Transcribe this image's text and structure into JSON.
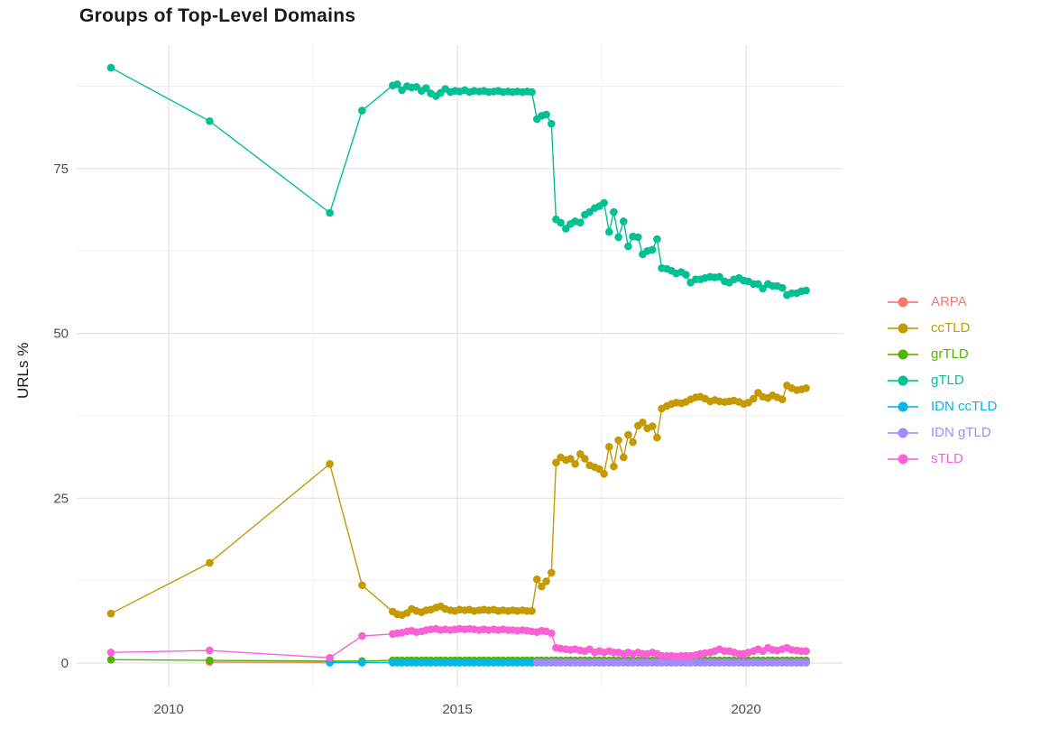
{
  "chart_data": {
    "type": "line",
    "title": "Groups of Top-Level Domains",
    "ylabel": "URLs %",
    "xlabel": "",
    "legend_position": "right",
    "grid": true,
    "x_axis": {
      "ticks": [
        2010,
        2015,
        2020
      ],
      "minor": [
        2012.5,
        2017.5
      ],
      "range": [
        2008.4,
        2021.7
      ]
    },
    "y_axis": {
      "ticks": [
        0,
        25,
        50,
        75
      ],
      "minor": [
        12.5,
        37.5,
        62.5,
        87.5
      ],
      "range": [
        -3.5,
        93.5
      ]
    },
    "x": [
      2009.0,
      2010.71,
      2012.79,
      2013.35,
      2013.88,
      2013.96,
      2014.04,
      2014.13,
      2014.21,
      2014.29,
      2014.38,
      2014.46,
      2014.54,
      2014.63,
      2014.71,
      2014.79,
      2014.88,
      2014.96,
      2015.04,
      2015.13,
      2015.21,
      2015.29,
      2015.38,
      2015.46,
      2015.54,
      2015.63,
      2015.71,
      2015.79,
      2015.88,
      2015.96,
      2016.04,
      2016.13,
      2016.21,
      2016.29,
      2016.38,
      2016.46,
      2016.54,
      2016.63,
      2016.71,
      2016.79,
      2016.88,
      2016.96,
      2017.04,
      2017.13,
      2017.21,
      2017.29,
      2017.38,
      2017.46,
      2017.54,
      2017.63,
      2017.71,
      2017.79,
      2017.88,
      2017.96,
      2018.04,
      2018.13,
      2018.21,
      2018.29,
      2018.38,
      2018.46,
      2018.54,
      2018.63,
      2018.71,
      2018.79,
      2018.88,
      2018.96,
      2019.04,
      2019.13,
      2019.21,
      2019.29,
      2019.38,
      2019.46,
      2019.54,
      2019.63,
      2019.71,
      2019.79,
      2019.88,
      2019.96,
      2020.04,
      2020.13,
      2020.21,
      2020.29,
      2020.38,
      2020.46,
      2020.54,
      2020.63,
      2020.71,
      2020.79,
      2020.88,
      2020.96,
      2021.04
    ],
    "series": [
      {
        "name": "ARPA",
        "color": "#F8766D",
        "values": [
          null,
          0.15,
          0.1,
          0.1,
          0.1,
          0.1,
          0.1,
          0.1,
          0.1,
          0.1,
          0.1,
          0.1,
          0.1,
          0.1,
          0.1,
          0.1,
          0.1,
          0.1,
          0.1,
          0.1,
          0.1,
          0.1,
          0.1,
          0.1,
          0.1,
          0.1,
          0.1,
          0.1,
          0.1,
          0.1,
          0.1,
          0.1,
          0.1,
          0.1,
          0.1,
          0.1,
          0.1,
          0.1,
          0.1,
          0.1,
          0.1,
          0.1,
          0.1,
          0.1,
          0.1,
          0.1,
          0.1,
          0.1,
          0.1,
          0.1,
          0.1,
          0.1,
          0.1,
          0.1,
          0.1,
          0.1,
          0.1,
          0.1,
          0.1,
          0.1,
          0.1,
          0.1,
          0.1,
          0.1,
          0.1,
          0.1,
          0.1,
          0.1,
          0.1,
          0.1,
          0.1,
          0.1,
          0.1,
          0.1,
          0.1,
          0.1,
          0.1,
          0.1,
          0.1,
          0.1,
          0.1,
          0.1,
          0.1,
          0.1,
          0.1,
          0.1,
          0.1,
          0.1,
          0.1,
          0.1,
          0.1
        ]
      },
      {
        "name": "ccTLD",
        "color": "#C49A00",
        "values": [
          7.5,
          15.2,
          30.2,
          11.8,
          7.8,
          7.4,
          7.3,
          7.6,
          8.2,
          7.9,
          7.7,
          8.0,
          8.1,
          8.4,
          8.6,
          8.2,
          8.0,
          7.9,
          8.1,
          8.0,
          8.1,
          7.9,
          8.0,
          8.1,
          8.0,
          8.1,
          7.9,
          8.0,
          7.9,
          8.0,
          7.9,
          8.0,
          7.9,
          7.9,
          12.7,
          11.6,
          12.4,
          13.7,
          30.4,
          31.2,
          30.8,
          31.0,
          30.2,
          31.7,
          31.0,
          30.0,
          29.7,
          29.4,
          28.7,
          32.8,
          29.8,
          33.8,
          31.2,
          34.6,
          33.5,
          36.0,
          36.5,
          35.6,
          35.9,
          34.2,
          38.6,
          39.0,
          39.3,
          39.5,
          39.4,
          39.6,
          40.0,
          40.3,
          40.4,
          40.1,
          39.7,
          39.9,
          39.7,
          39.6,
          39.7,
          39.8,
          39.6,
          39.3,
          39.5,
          40.1,
          41.0,
          40.4,
          40.2,
          40.6,
          40.3,
          40.0,
          42.1,
          41.7,
          41.4,
          41.5,
          41.7
        ]
      },
      {
        "name": "grTLD",
        "color": "#53B400",
        "values": [
          0.5,
          0.4,
          0.3,
          0.3,
          0.4,
          0.4,
          0.4,
          0.4,
          0.4,
          0.4,
          0.4,
          0.4,
          0.4,
          0.4,
          0.4,
          0.4,
          0.4,
          0.4,
          0.4,
          0.4,
          0.4,
          0.4,
          0.4,
          0.4,
          0.4,
          0.4,
          0.4,
          0.4,
          0.4,
          0.4,
          0.4,
          0.4,
          0.4,
          0.4,
          0.4,
          0.4,
          0.4,
          0.4,
          0.4,
          0.4,
          0.4,
          0.4,
          0.4,
          0.4,
          0.4,
          0.4,
          0.4,
          0.4,
          0.4,
          0.4,
          0.4,
          0.4,
          0.4,
          0.4,
          0.4,
          0.4,
          0.4,
          0.4,
          0.4,
          0.4,
          0.4,
          0.4,
          0.4,
          0.4,
          0.4,
          0.4,
          0.4,
          0.4,
          0.4,
          0.4,
          0.4,
          0.4,
          0.4,
          0.4,
          0.4,
          0.4,
          0.4,
          0.4,
          0.4,
          0.4,
          0.4,
          0.4,
          0.4,
          0.4,
          0.4,
          0.4,
          0.4,
          0.4,
          0.4,
          0.4,
          0.4
        ]
      },
      {
        "name": "gTLD",
        "color": "#00C094",
        "values": [
          90.3,
          82.2,
          68.3,
          83.8,
          87.6,
          87.8,
          86.9,
          87.5,
          87.3,
          87.4,
          86.8,
          87.2,
          86.4,
          86.0,
          86.5,
          87.1,
          86.6,
          86.8,
          86.7,
          86.9,
          86.6,
          86.8,
          86.7,
          86.8,
          86.6,
          86.7,
          86.8,
          86.6,
          86.7,
          86.6,
          86.7,
          86.6,
          86.7,
          86.6,
          82.5,
          83.0,
          83.2,
          81.8,
          67.3,
          66.8,
          65.9,
          66.6,
          67.0,
          66.8,
          68.0,
          68.4,
          69.0,
          69.3,
          69.8,
          65.4,
          68.4,
          64.6,
          67.0,
          63.2,
          64.7,
          64.6,
          62.0,
          62.5,
          62.7,
          64.3,
          59.9,
          59.8,
          59.5,
          59.1,
          59.3,
          58.9,
          57.7,
          58.2,
          58.2,
          58.4,
          58.6,
          58.5,
          58.6,
          57.9,
          57.7,
          58.2,
          58.4,
          58.0,
          57.9,
          57.5,
          57.5,
          56.8,
          57.5,
          57.2,
          57.2,
          56.9,
          55.8,
          56.1,
          56.1,
          56.4,
          56.5
        ]
      },
      {
        "name": "IDN ccTLD",
        "color": "#00B6EB",
        "values": [
          null,
          null,
          0.05,
          0.05,
          0.05,
          0.05,
          0.05,
          0.05,
          0.05,
          0.05,
          0.05,
          0.05,
          0.05,
          0.05,
          0.05,
          0.05,
          0.05,
          0.05,
          0.05,
          0.05,
          0.05,
          0.05,
          0.05,
          0.05,
          0.05,
          0.05,
          0.05,
          0.05,
          0.05,
          0.05,
          0.05,
          0.05,
          0.05,
          0.05,
          0.05,
          0.05,
          0.05,
          0.05,
          0.05,
          0.05,
          0.05,
          0.05,
          0.05,
          0.05,
          0.05,
          0.05,
          0.05,
          0.05,
          0.05,
          0.05,
          0.05,
          0.05,
          0.05,
          0.05,
          0.05,
          0.05,
          0.05,
          0.05,
          0.05,
          0.05,
          0.05,
          0.05,
          0.05,
          0.05,
          0.05,
          0.05,
          0.05,
          0.05,
          0.05,
          0.05,
          0.05,
          0.05,
          0.05,
          0.05,
          0.05,
          0.05,
          0.05,
          0.05,
          0.05,
          0.05,
          0.05,
          0.05,
          0.05,
          0.05,
          0.05,
          0.05,
          0.05,
          0.05,
          0.05,
          0.05,
          0.05
        ]
      },
      {
        "name": "IDN gTLD",
        "color": "#A58AFF",
        "values": [
          null,
          null,
          null,
          null,
          null,
          null,
          null,
          null,
          null,
          null,
          null,
          null,
          null,
          null,
          null,
          null,
          null,
          null,
          null,
          null,
          null,
          null,
          null,
          null,
          null,
          null,
          null,
          null,
          null,
          null,
          null,
          null,
          null,
          null,
          0.1,
          0.1,
          0.1,
          0.1,
          0.1,
          0.1,
          0.1,
          0.1,
          0.1,
          0.1,
          0.1,
          0.1,
          0.1,
          0.1,
          0.1,
          0.1,
          0.1,
          0.1,
          0.1,
          0.1,
          0.1,
          0.1,
          0.1,
          0.1,
          0.1,
          0.1,
          0.1,
          0.1,
          0.1,
          0.1,
          0.1,
          0.1,
          0.1,
          0.1,
          0.1,
          0.1,
          0.1,
          0.1,
          0.1,
          0.1,
          0.1,
          0.1,
          0.1,
          0.1,
          0.1,
          0.1,
          0.1,
          0.1,
          0.1,
          0.1,
          0.1,
          0.1,
          0.1,
          0.1,
          0.1,
          0.1,
          0.1
        ]
      },
      {
        "name": "sTLD",
        "color": "#FB61D7",
        "values": [
          1.6,
          1.9,
          0.8,
          4.1,
          4.4,
          4.5,
          4.6,
          4.8,
          4.9,
          4.7,
          4.8,
          5.0,
          5.1,
          5.2,
          5.0,
          5.1,
          5.0,
          5.1,
          5.2,
          5.1,
          5.2,
          5.1,
          5.0,
          5.1,
          5.0,
          5.1,
          5.0,
          5.1,
          5.0,
          5.0,
          4.9,
          5.0,
          4.9,
          4.8,
          4.7,
          4.9,
          4.8,
          4.5,
          2.3,
          2.2,
          2.1,
          2.0,
          2.1,
          1.9,
          1.8,
          2.1,
          1.6,
          1.8,
          1.6,
          1.8,
          1.6,
          1.6,
          1.4,
          1.6,
          1.4,
          1.6,
          1.4,
          1.4,
          1.6,
          1.4,
          1.1,
          1.1,
          1.1,
          1.0,
          1.1,
          1.1,
          1.1,
          1.2,
          1.4,
          1.5,
          1.6,
          1.8,
          2.1,
          1.8,
          1.8,
          1.6,
          1.4,
          1.4,
          1.6,
          1.8,
          2.1,
          1.8,
          2.3,
          2.0,
          1.9,
          2.1,
          2.3,
          2.0,
          1.9,
          1.8,
          1.8
        ]
      }
    ]
  }
}
